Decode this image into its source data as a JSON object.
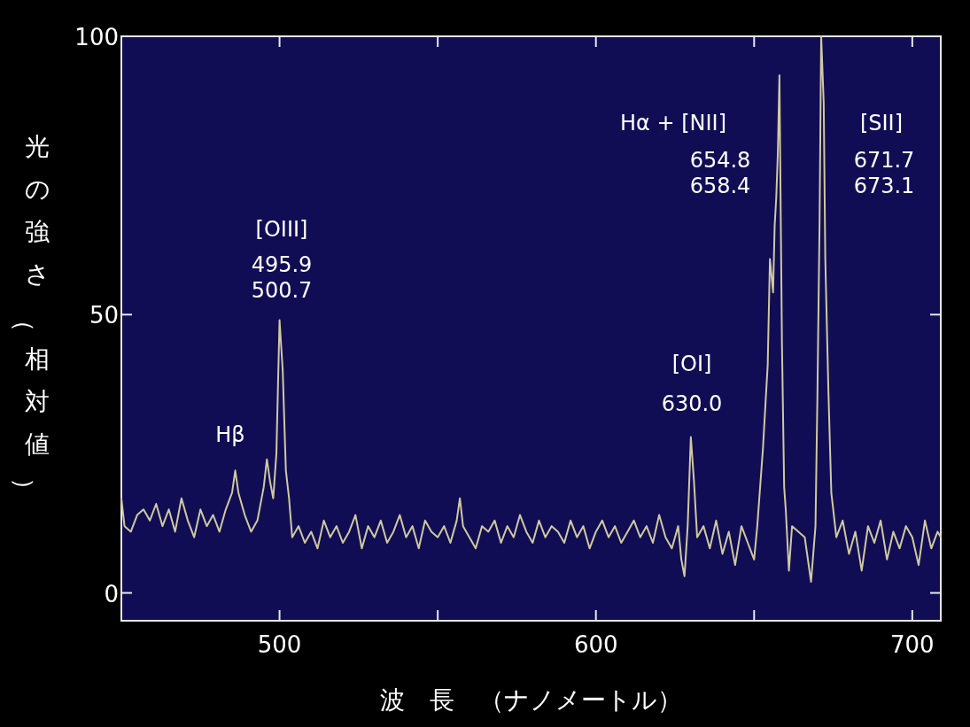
{
  "chart_data": {
    "type": "line",
    "xlabel": "波　長　（ナノメートル）",
    "ylabel": "光の強さ（相対値）",
    "x": [
      450,
      451,
      453,
      455,
      457,
      459,
      461,
      463,
      465,
      467,
      469,
      471,
      473,
      475,
      477,
      479,
      481,
      483,
      485,
      486,
      487,
      489,
      491,
      493,
      495,
      496,
      497,
      498,
      499,
      500,
      501,
      502,
      503,
      504,
      506,
      508,
      510,
      512,
      514,
      516,
      518,
      520,
      522,
      524,
      526,
      528,
      530,
      532,
      534,
      536,
      538,
      540,
      542,
      544,
      546,
      548,
      550,
      552,
      554,
      556,
      557,
      558,
      560,
      562,
      564,
      566,
      568,
      570,
      572,
      574,
      576,
      578,
      580,
      582,
      584,
      586,
      588,
      590,
      592,
      594,
      596,
      598,
      600,
      602,
      604,
      606,
      608,
      610,
      612,
      614,
      616,
      618,
      620,
      622,
      624,
      626,
      627,
      628,
      629,
      630,
      631,
      632,
      634,
      636,
      638,
      640,
      642,
      644,
      646,
      648,
      650,
      651,
      652.8,
      654.3,
      655,
      656,
      656.5,
      657,
      657.5,
      658,
      658.8,
      659.5,
      660,
      661,
      662,
      664,
      666,
      668,
      669.4,
      670,
      670.7,
      671.2,
      672,
      672.5,
      673.5,
      674.4,
      676,
      678,
      680,
      682,
      684,
      686,
      688,
      690,
      692,
      694,
      696,
      698,
      700,
      702,
      704,
      706,
      708,
      709
    ],
    "series": [
      {
        "color": "#cfc9a0",
        "values": [
          17,
          12,
          11,
          14,
          15,
          13,
          16,
          12,
          15,
          11,
          17,
          13,
          10,
          15,
          12,
          14,
          11,
          15,
          18,
          22,
          18,
          14,
          11,
          13,
          19,
          24,
          20,
          17,
          25,
          49,
          40,
          22,
          17,
          10,
          12,
          9,
          11,
          8,
          13,
          10,
          12,
          9,
          11,
          14,
          8,
          12,
          10,
          13,
          9,
          11,
          14,
          10,
          12,
          8,
          13,
          11,
          10,
          12,
          9,
          13,
          17,
          12,
          10,
          8,
          12,
          11,
          13,
          9,
          12,
          10,
          14,
          11,
          9,
          13,
          10,
          12,
          11,
          9,
          13,
          10,
          12,
          8,
          11,
          13,
          10,
          12,
          9,
          11,
          13,
          10,
          12,
          9,
          14,
          10,
          8,
          12,
          6,
          3,
          12,
          28,
          20,
          10,
          12,
          8,
          13,
          7,
          11,
          5,
          12,
          9,
          6,
          12,
          26,
          41,
          60,
          54,
          66,
          71,
          79,
          93,
          45,
          19,
          15,
          4,
          12,
          11,
          10,
          2,
          12,
          35,
          67,
          100,
          88,
          60,
          36,
          18,
          10,
          13,
          7,
          11,
          4,
          12,
          9,
          13,
          6,
          11,
          8,
          12,
          10,
          5,
          13,
          8,
          11,
          10
        ]
      }
    ],
    "xlim": [
      450,
      709
    ],
    "ylim": [
      -5,
      100
    ],
    "xticks": [
      {
        "value": 450,
        "label": null
      },
      {
        "value": 500,
        "label": "500"
      },
      {
        "value": 550,
        "label": null
      },
      600,
      {
        "value": 650,
        "label": null
      },
      700
    ],
    "yticks": [
      0,
      50,
      100
    ],
    "annotations": [
      "Hβ",
      "[OIII]",
      "495.9",
      "500.7",
      "[OI]",
      "630.0",
      "Hα + [NII]",
      "654.8",
      "658.4",
      "[SII]",
      "671.7",
      "673.1"
    ]
  }
}
